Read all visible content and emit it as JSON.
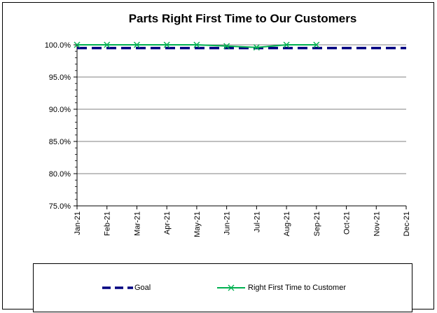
{
  "chart_data": {
    "type": "line",
    "title": "Parts Right First Time to Our Customers",
    "x": [
      "Jan-21",
      "Feb-21",
      "Mar-21",
      "Apr-21",
      "May-21",
      "Jun-21",
      "Jul-21",
      "Aug-21",
      "Sep-21",
      "Oct-21",
      "Nov-21",
      "Dec-21"
    ],
    "y_ticks": [
      "75.0%",
      "80.0%",
      "85.0%",
      "90.0%",
      "95.0%",
      "100.0%"
    ],
    "ylim": [
      75,
      100
    ],
    "grid": true,
    "legend_placement": "bottom",
    "series": [
      {
        "name": "Goal",
        "color": "#000080",
        "style": "dashed",
        "values": [
          99.5,
          99.5,
          99.5,
          99.5,
          99.5,
          99.5,
          99.5,
          99.5,
          99.5,
          99.5,
          99.5,
          99.5
        ]
      },
      {
        "name": "Right First Time to Customer",
        "color": "#00b050",
        "style": "solid-x-marker",
        "values": [
          100,
          100,
          100,
          100,
          100,
          99.8,
          99.6,
          100,
          100,
          null,
          null,
          null
        ]
      }
    ]
  }
}
